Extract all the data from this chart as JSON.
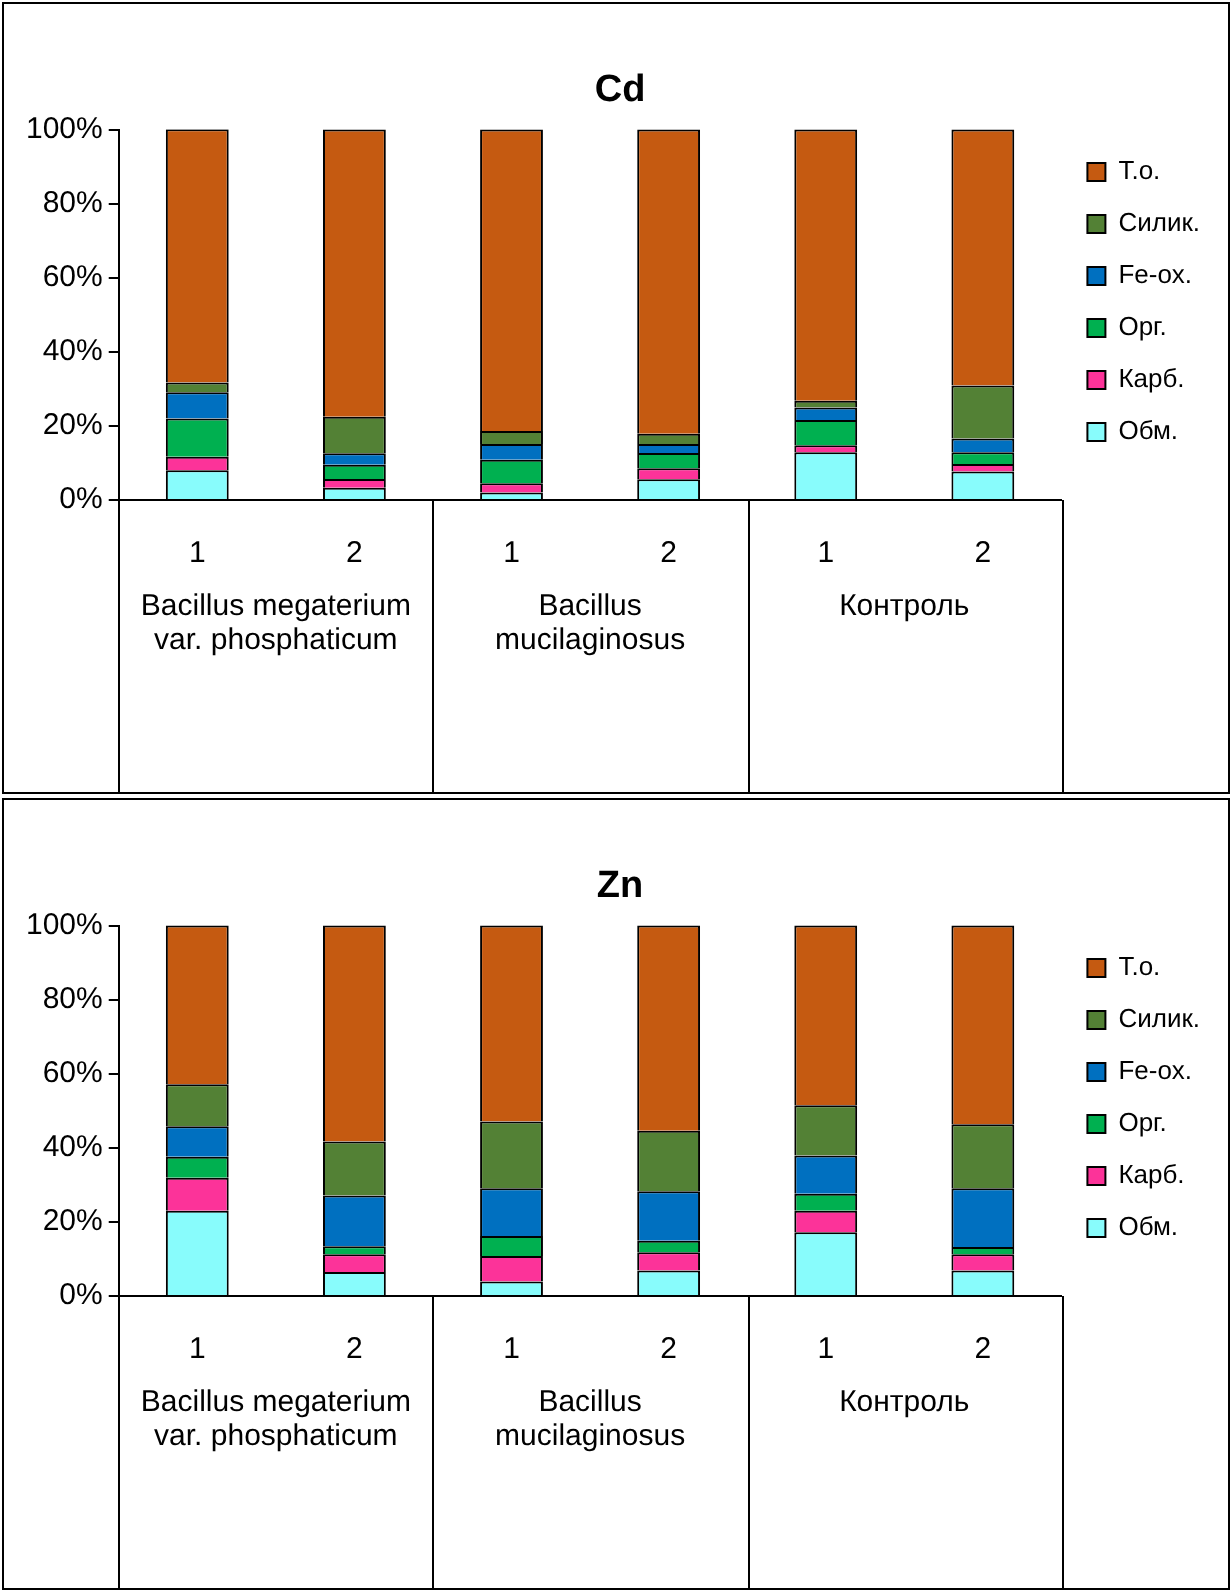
{
  "chart_data": [
    {
      "type": "bar",
      "title": "Cd",
      "stacked": true,
      "legend": "right",
      "categories": [
        "1",
        "2",
        "1",
        "2",
        "1",
        "2"
      ],
      "annotations": [
        "Bacillus megaterium var. phosphaticum",
        "Bacillus mucilaginosus",
        "Контроль"
      ],
      "ylim": [
        0,
        100
      ],
      "yticks": [
        {
          "value": 0,
          "label": "0%"
        },
        {
          "value": 20,
          "label": "20%"
        },
        {
          "value": 40,
          "label": "40%"
        },
        {
          "value": 60,
          "label": "60%"
        },
        {
          "value": 80,
          "label": "80%"
        },
        {
          "value": 100,
          "label": "100%"
        }
      ],
      "series": [
        {
          "name": "Обм.",
          "color": "#88fcfc",
          "values": [
            8.0,
            3.3,
            2.0,
            5.6,
            12.9,
            7.7
          ]
        },
        {
          "name": "Карб.",
          "color": "#fc3399",
          "values": [
            3.7,
            2.4,
            2.5,
            3.0,
            1.9,
            2.0
          ]
        },
        {
          "name": "Орг.",
          "color": "#00b050",
          "values": [
            10.3,
            3.8,
            6.4,
            4.1,
            6.8,
            3.2
          ]
        },
        {
          "name": "Fe-ox.",
          "color": "#0070c0",
          "values": [
            7.1,
            3.1,
            4.2,
            2.4,
            3.4,
            3.7
          ]
        },
        {
          "name": "Силик.",
          "color": "#538135",
          "values": [
            2.6,
            9.9,
            3.5,
            2.8,
            1.8,
            14.3
          ]
        },
        {
          "name": "Т.о.",
          "color": "#c55a11",
          "values": [
            68.4,
            77.5,
            81.4,
            82.1,
            73.2,
            69.1
          ]
        }
      ]
    },
    {
      "type": "bar",
      "title": "Zn",
      "stacked": true,
      "legend": "right",
      "categories": [
        "1",
        "2",
        "1",
        "2",
        "1",
        "2"
      ],
      "annotations": [
        "Bacillus megaterium var. phosphaticum",
        "Bacillus mucilaginosus",
        "Контроль"
      ],
      "ylim": [
        0,
        100
      ],
      "yticks": [
        {
          "value": 0,
          "label": "0%"
        },
        {
          "value": 20,
          "label": "20%"
        },
        {
          "value": 40,
          "label": "40%"
        },
        {
          "value": 60,
          "label": "60%"
        },
        {
          "value": 80,
          "label": "80%"
        },
        {
          "value": 100,
          "label": "100%"
        }
      ],
      "series": [
        {
          "name": "Обм.",
          "color": "#88fcfc",
          "values": [
            23.0,
            6.5,
            3.9,
            6.9,
            17.2,
            6.9
          ]
        },
        {
          "name": "Карб.",
          "color": "#fc3399",
          "values": [
            8.9,
            4.8,
            6.9,
            4.9,
            5.8,
            4.4
          ]
        },
        {
          "name": "Орг.",
          "color": "#00b050",
          "values": [
            5.7,
            2.1,
            5.4,
            3.1,
            4.6,
            1.9
          ]
        },
        {
          "name": "Fe-ox.",
          "color": "#0070c0",
          "values": [
            8.2,
            13.7,
            12.9,
            13.4,
            10.3,
            15.9
          ]
        },
        {
          "name": "Силик.",
          "color": "#538135",
          "values": [
            11.4,
            14.6,
            18.0,
            16.3,
            13.6,
            17.3
          ]
        },
        {
          "name": "Т.о.",
          "color": "#c55a11",
          "values": [
            42.8,
            58.3,
            52.9,
            55.4,
            48.5,
            53.6
          ]
        }
      ]
    }
  ]
}
